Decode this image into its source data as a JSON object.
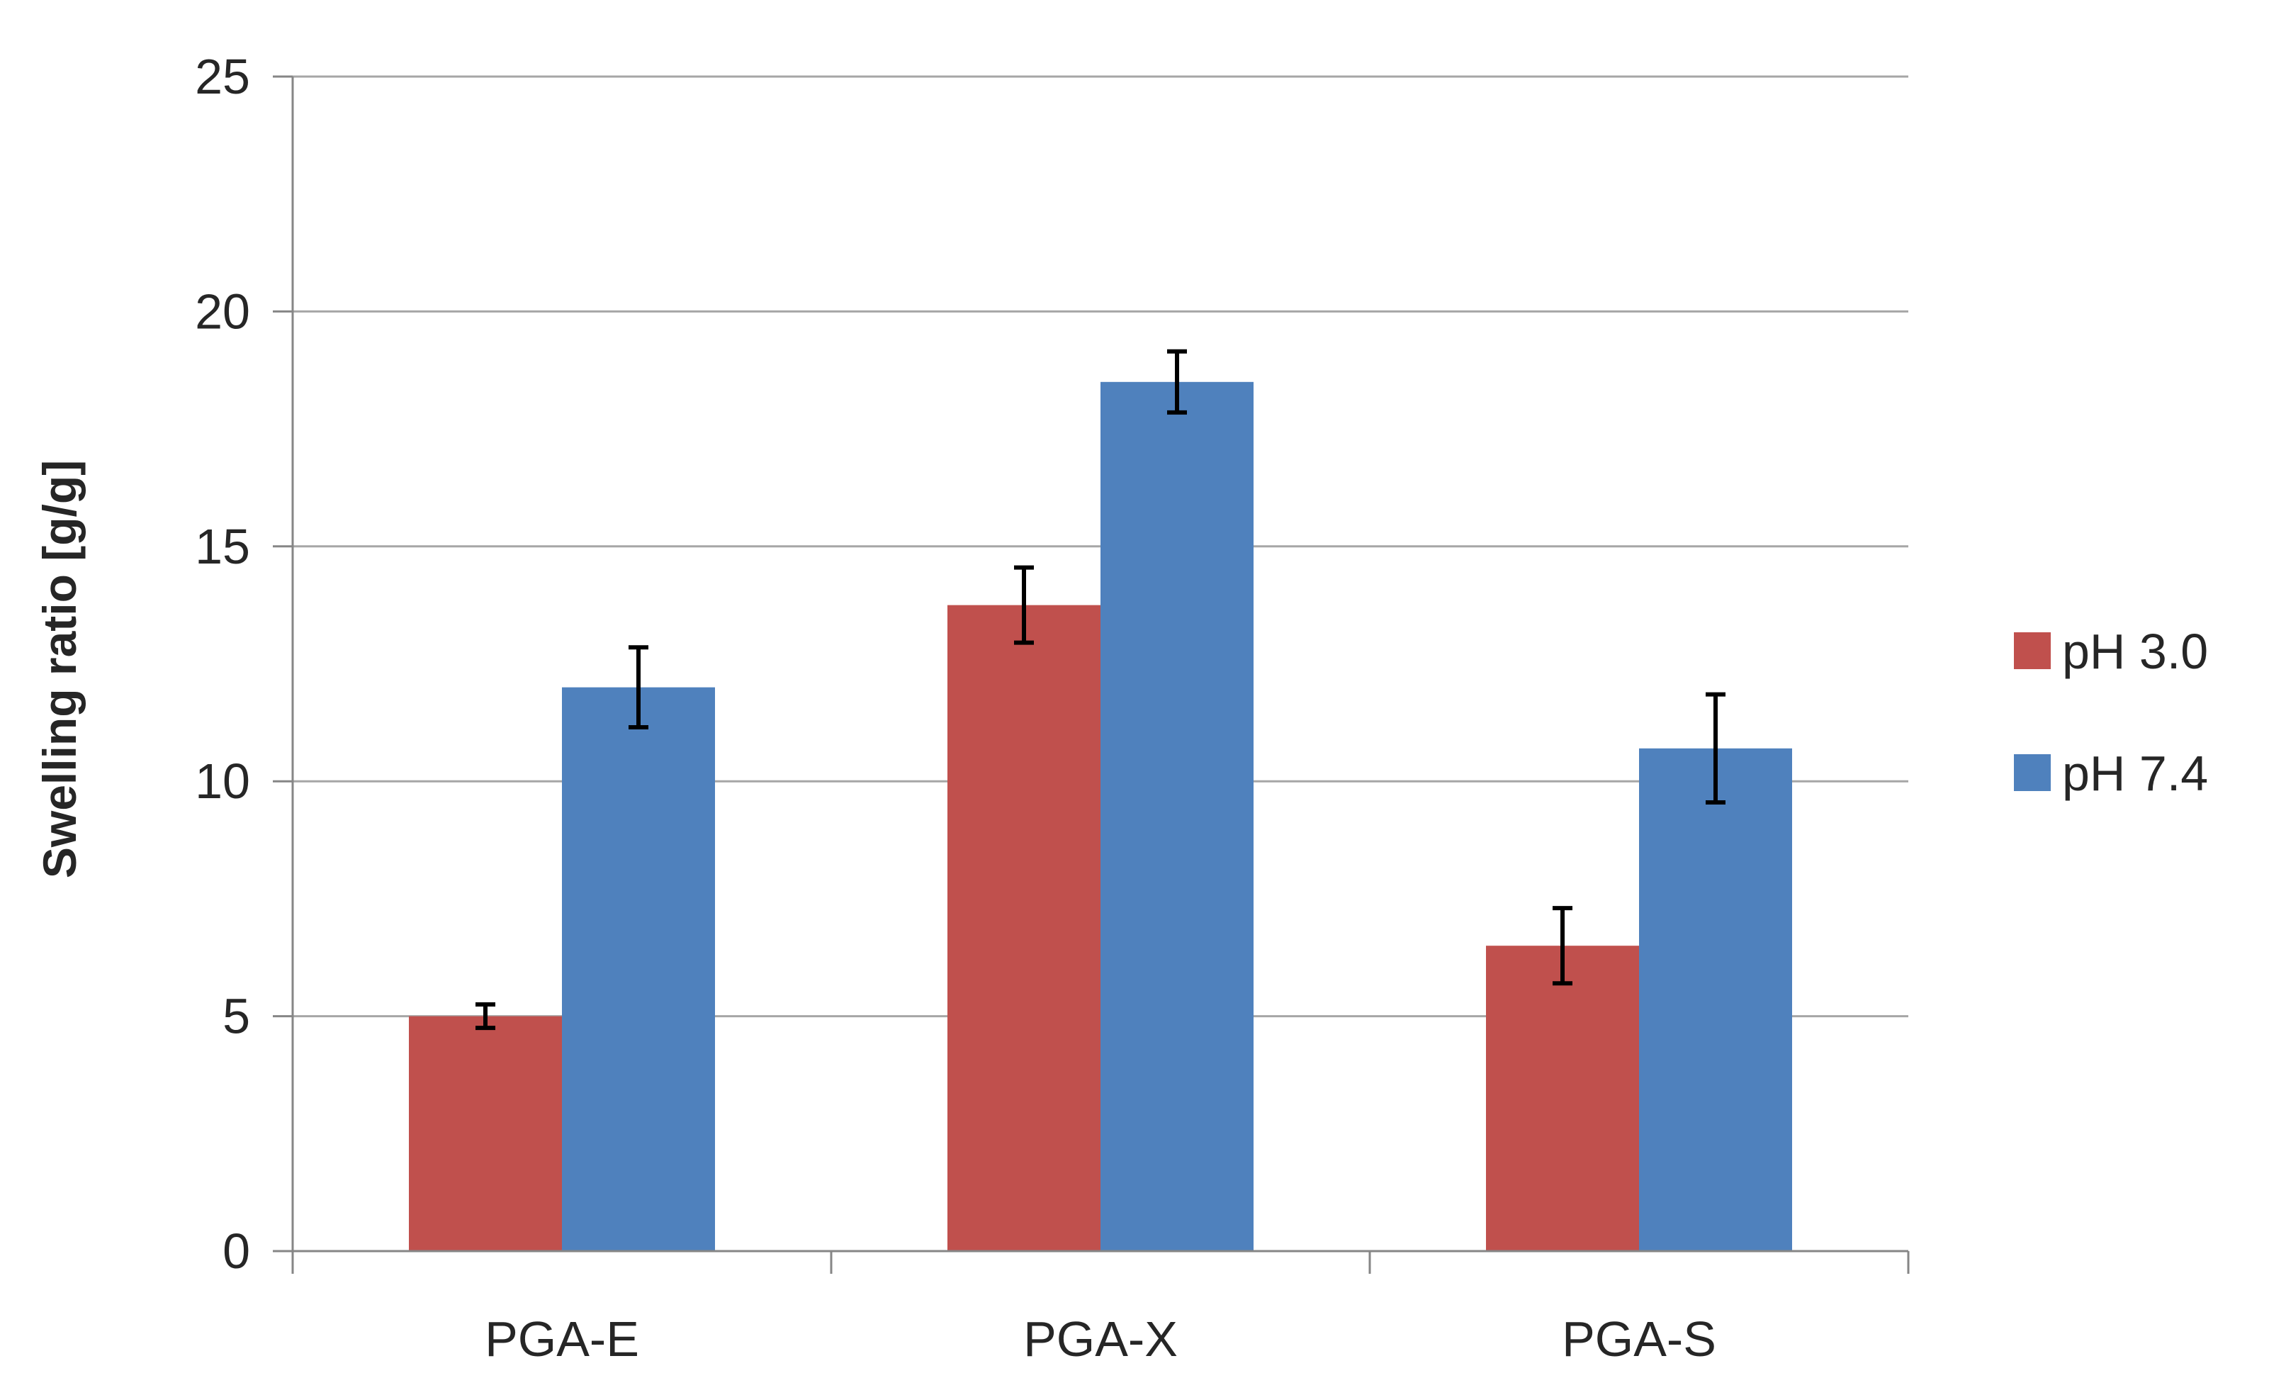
{
  "chart_data": {
    "type": "bar",
    "title": "",
    "xlabel": "",
    "ylabel": "Swelling ratio [g/g]",
    "ylim": [
      0,
      25
    ],
    "yticks": [
      0,
      5,
      10,
      15,
      20,
      25
    ],
    "grid": true,
    "legend_position": "right",
    "categories": [
      "PGA-E",
      "PGA-X",
      "PGA-S"
    ],
    "series": [
      {
        "name": "pH 3.0",
        "color": "#c0504d",
        "values": [
          5.0,
          13.75,
          6.5
        ],
        "errors": [
          0.25,
          0.8,
          0.8
        ]
      },
      {
        "name": "pH 7.4",
        "color": "#4f81bd",
        "values": [
          12.0,
          18.5,
          10.7
        ],
        "errors": [
          0.85,
          0.65,
          1.15
        ]
      }
    ],
    "colors": {
      "gridline": "#a6a6a6",
      "axis": "#868686",
      "errorbar": "#000000"
    }
  }
}
